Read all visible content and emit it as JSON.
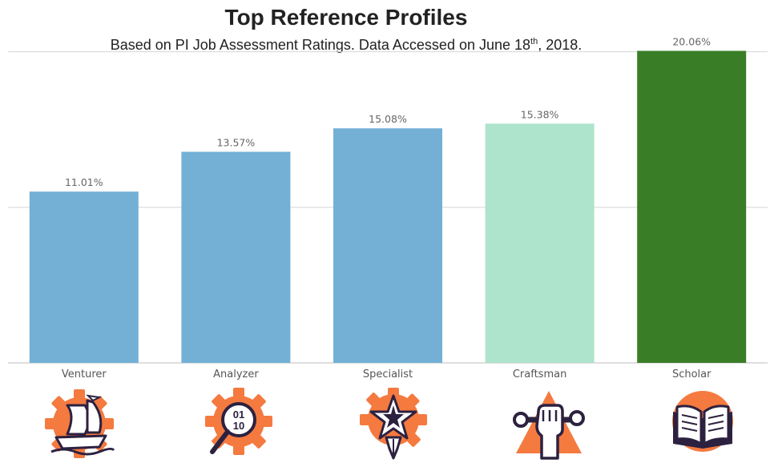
{
  "chart_data": {
    "type": "bar",
    "title": "Top Reference Profiles",
    "subtitle": {
      "before": "Based on PI Job Assessment Ratings. Data Accessed on June 18",
      "sup": "th",
      "after": ", 2018."
    },
    "categories": [
      "Venturer",
      "Analyzer",
      "Specialist",
      "Craftsman",
      "Scholar"
    ],
    "values": [
      11.01,
      13.57,
      15.08,
      15.38,
      20.06
    ],
    "value_labels": [
      "11.01%",
      "13.57%",
      "15.08%",
      "15.38%",
      "20.06%"
    ],
    "colors": [
      "#74b0d6",
      "#74b0d6",
      "#74b0d6",
      "#ade4cb",
      "#3a7d27"
    ],
    "ylim": [
      0,
      20.6
    ],
    "gridlines": [
      0,
      10,
      20
    ],
    "grid": true,
    "xlabel": "",
    "ylabel": ""
  },
  "icons": [
    "venturer-ship-icon",
    "analyzer-binary-magnifier-icon",
    "specialist-star-icon",
    "craftsman-wrench-fist-icon",
    "scholar-book-icon"
  ],
  "colors": {
    "icon_orange": "#f47a3f",
    "icon_dark": "#2d2140",
    "gridline": "#d5d5d5",
    "value_label": "#666666",
    "category_label": "#555555"
  }
}
